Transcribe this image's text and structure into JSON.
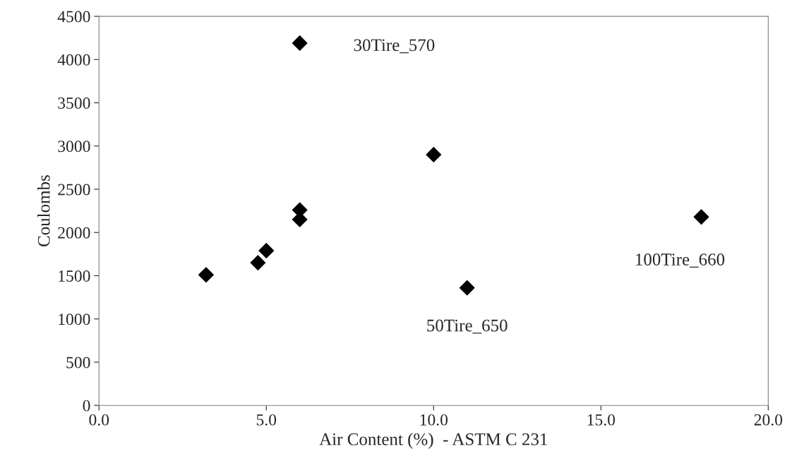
{
  "chart_data": {
    "type": "scatter",
    "xlabel": "Air Content (%)  - ASTM C 231",
    "ylabel": "Coulombs",
    "x": [
      3.2,
      4.75,
      5.0,
      6.0,
      6.0,
      6.0,
      10.0,
      11.0,
      18.0
    ],
    "values": [
      1510,
      1650,
      1790,
      2260,
      2150,
      4190,
      2900,
      1360,
      2180
    ],
    "color": "#000000",
    "marker": "diamond",
    "xlim": [
      0,
      20
    ],
    "xticks": [
      {
        "value": 0,
        "label": "0.0"
      },
      {
        "value": 5,
        "label": "5.0"
      },
      {
        "value": 10,
        "label": "10.0"
      },
      {
        "value": 15,
        "label": "15.0"
      },
      {
        "value": 20,
        "label": "20.0"
      }
    ],
    "ylim": [
      0,
      4500
    ],
    "yticks": [
      0,
      500,
      1000,
      1500,
      2000,
      2500,
      3000,
      3500,
      4000,
      4500
    ],
    "grid": false,
    "legend": false,
    "annotations": [
      "30Tire_570",
      {
        "text": "50Tire_650",
        "x": 11.0,
        "y": 1360
      },
      {
        "text": "100Tire_660",
        "x": 18.0,
        "y": 2180
      }
    ]
  }
}
